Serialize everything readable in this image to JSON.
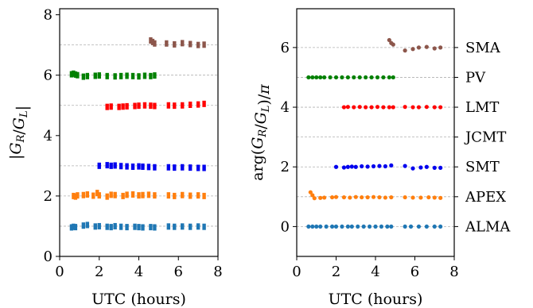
{
  "chart_data": [
    {
      "type": "scatter",
      "xlabel": "UTC (hours)",
      "ylabel": "|G_R/G_L|",
      "xlim": [
        0,
        8
      ],
      "ylim": [
        0,
        8.2
      ],
      "xticks": [
        "0",
        "2",
        "4",
        "6",
        "8"
      ],
      "yticks": [
        "0",
        "2",
        "4",
        "6",
        "8"
      ],
      "grid": "horizontal-dashed-at-station-offsets",
      "series": [
        {
          "color": "#1f77b4",
          "offset": 1,
          "x": [
            0.6,
            0.7,
            0.8,
            1.2,
            1.4,
            1.8,
            2.0,
            2.4,
            2.6,
            2.8,
            3.1,
            3.4,
            3.8,
            4.0,
            4.2,
            4.6,
            4.8,
            5.5,
            5.8,
            6.2,
            6.6,
            7.0,
            7.3
          ],
          "y": [
            0.96,
            0.98,
            0.97,
            1.02,
            1.04,
            0.99,
            1.0,
            0.98,
            0.97,
            1.0,
            0.98,
            0.97,
            0.98,
            0.97,
            0.96,
            0.97,
            0.96,
            0.99,
            0.98,
            0.99,
            0.98,
            0.99,
            0.98
          ]
        },
        {
          "color": "#ff7f0e",
          "offset": 2,
          "x": [
            0.7,
            0.8,
            0.9,
            1.2,
            1.4,
            1.7,
            1.9,
            2.0,
            2.4,
            2.6,
            2.8,
            3.2,
            3.4,
            3.7,
            4.0,
            4.2,
            4.5,
            4.8,
            5.5,
            5.8,
            6.2,
            6.6,
            7.0,
            7.3
          ],
          "y": [
            2.0,
            1.98,
            2.02,
            2.03,
            2.05,
            2.01,
            2.1,
            2.02,
            1.98,
            2.04,
            2.03,
            2.0,
            2.04,
            2.05,
            2.02,
            2.03,
            2.04,
            2.02,
            2.02,
            2.0,
            2.03,
            2.01,
            2.02,
            2.0
          ]
        },
        {
          "color": "#0000ee",
          "offset": 3,
          "x": [
            2.0,
            2.4,
            2.6,
            2.8,
            3.1,
            3.4,
            3.7,
            4.0,
            4.2,
            4.5,
            4.8,
            5.5,
            5.8,
            6.2,
            6.6,
            7.0,
            7.3
          ],
          "y": [
            3.0,
            3.02,
            3.0,
            3.01,
            2.99,
            2.98,
            2.97,
            2.98,
            2.97,
            2.96,
            2.95,
            2.95,
            2.94,
            2.95,
            2.94,
            2.93,
            2.93
          ]
        },
        {
          "color": "#ff0000",
          "offset": 5,
          "x": [
            2.4,
            2.6,
            3.0,
            3.2,
            3.4,
            3.8,
            4.0,
            4.3,
            4.6,
            4.8,
            5.5,
            5.8,
            6.2,
            6.6,
            7.0,
            7.3
          ],
          "y": [
            4.95,
            4.96,
            4.95,
            4.96,
            4.97,
            4.98,
            4.99,
            5.0,
            4.99,
            4.98,
            5.0,
            4.99,
            5.0,
            5.02,
            5.03,
            5.05
          ]
        },
        {
          "color": "#008000",
          "offset": 6,
          "x": [
            0.6,
            0.7,
            0.8,
            0.9,
            1.2,
            1.4,
            1.8,
            2.0,
            2.4,
            2.8,
            3.1,
            3.4,
            3.7,
            4.0,
            4.3,
            4.6,
            4.8
          ],
          "y": [
            6.03,
            6.05,
            6.02,
            6.0,
            5.95,
            5.97,
            5.98,
            5.99,
            5.97,
            5.96,
            5.97,
            5.98,
            5.97,
            5.96,
            5.98,
            5.97,
            5.99
          ]
        },
        {
          "color": "#8c564b",
          "offset": 7,
          "x": [
            4.6,
            4.7,
            4.8,
            5.4,
            5.8,
            6.2,
            6.6,
            7.0,
            7.3
          ],
          "y": [
            7.15,
            7.1,
            7.05,
            7.05,
            7.02,
            7.06,
            7.03,
            7.0,
            7.01
          ]
        }
      ]
    },
    {
      "type": "scatter",
      "xlabel": "UTC (hours)",
      "ylabel": "arg(G_R/G_L)/π",
      "xlim": [
        0,
        8
      ],
      "ylim": [
        -1,
        7.3
      ],
      "xticks": [
        "0",
        "2",
        "4",
        "6",
        "8"
      ],
      "yticks": [
        "0",
        "2",
        "4",
        "6"
      ],
      "grid": "horizontal-dashed-at-station-offsets",
      "station_labels": [
        {
          "name": "ALMA",
          "offset": 0
        },
        {
          "name": "APEX",
          "offset": 1
        },
        {
          "name": "SMT",
          "offset": 2
        },
        {
          "name": "JCMT",
          "offset": 3
        },
        {
          "name": "LMT",
          "offset": 4
        },
        {
          "name": "PV",
          "offset": 5
        },
        {
          "name": "SMA",
          "offset": 6
        }
      ],
      "series": [
        {
          "color": "#1f77b4",
          "offset": 0,
          "x": [
            0.6,
            0.8,
            1.0,
            1.2,
            1.5,
            1.8,
            2.0,
            2.3,
            2.6,
            2.8,
            3.1,
            3.4,
            3.7,
            4.0,
            4.3,
            4.6,
            4.8,
            5.5,
            5.8,
            6.2,
            6.6,
            7.0,
            7.3
          ],
          "y": [
            0,
            0,
            0,
            0,
            0,
            0,
            0,
            0,
            0,
            0,
            0,
            0,
            0,
            0,
            0,
            0,
            0,
            0,
            0,
            0,
            0,
            0,
            0
          ]
        },
        {
          "color": "#ff7f0e",
          "offset": 1,
          "x": [
            0.7,
            0.8,
            0.9,
            1.2,
            1.4,
            1.8,
            2.0,
            2.4,
            2.7,
            3.0,
            3.3,
            3.6,
            3.9,
            4.2,
            4.5,
            4.8,
            5.5,
            5.9,
            6.3,
            6.7,
            7.0,
            7.3
          ],
          "y": [
            1.15,
            1.05,
            0.95,
            0.96,
            0.97,
            0.98,
            0.99,
            0.98,
            0.97,
            0.99,
            0.98,
            0.98,
            0.99,
            0.98,
            0.97,
            0.98,
            0.98,
            0.97,
            0.97,
            0.98,
            0.97,
            0.96
          ]
        },
        {
          "color": "#0000ee",
          "offset": 2,
          "x": [
            2.0,
            2.4,
            2.6,
            2.8,
            3.0,
            3.3,
            3.6,
            3.9,
            4.2,
            4.5,
            4.8,
            5.5,
            5.9,
            6.3,
            6.6,
            7.0,
            7.3
          ],
          "y": [
            2.0,
            1.98,
            2.0,
            2.01,
            2.0,
            2.02,
            2.01,
            2.02,
            2.03,
            2.02,
            2.05,
            2.03,
            1.95,
            1.98,
            2.0,
            1.97,
            1.97
          ]
        },
        {
          "color": "#ff0000",
          "offset": 4,
          "x": [
            2.4,
            2.6,
            2.9,
            3.2,
            3.5,
            3.8,
            4.1,
            4.4,
            4.7,
            4.9,
            5.5,
            5.9,
            6.2,
            6.6,
            7.0,
            7.3
          ],
          "y": [
            4.0,
            4.01,
            4.0,
            4.01,
            4.0,
            4.0,
            4.01,
            4.0,
            4.0,
            4.0,
            4.01,
            4.0,
            4.0,
            4.01,
            4.0,
            4.0
          ]
        },
        {
          "color": "#008000",
          "offset": 5,
          "x": [
            0.6,
            0.8,
            1.0,
            1.2,
            1.4,
            1.7,
            2.0,
            2.3,
            2.6,
            2.9,
            3.2,
            3.5,
            3.8,
            4.1,
            4.4,
            4.7,
            4.9
          ],
          "y": [
            5,
            5,
            5,
            5,
            5,
            5,
            5,
            5,
            5,
            5,
            5,
            5,
            5,
            5,
            5,
            5,
            5
          ]
        },
        {
          "color": "#8c564b",
          "offset": 6,
          "x": [
            4.7,
            4.8,
            4.9,
            5.5,
            5.9,
            6.2,
            6.6,
            7.0,
            7.3
          ],
          "y": [
            6.25,
            6.15,
            6.1,
            5.9,
            5.95,
            6.0,
            6.02,
            5.97,
            6.0
          ]
        }
      ]
    }
  ]
}
